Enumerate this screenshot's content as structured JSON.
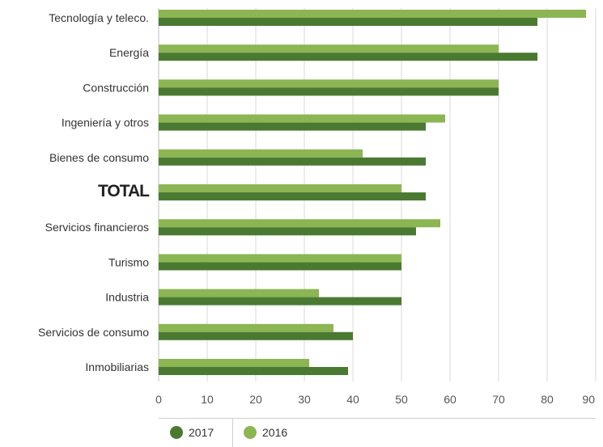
{
  "chart_data": {
    "type": "bar",
    "orientation": "horizontal",
    "categories": [
      "Tecnología y teleco.",
      "Energía",
      "Construcción",
      "Ingeniería y otros",
      "Bienes de consumo",
      "TOTAL",
      "Servicios financieros",
      "Turismo",
      "Industria",
      "Servicios de consumo",
      "Inmobiliarias"
    ],
    "series": [
      {
        "name": "2016",
        "color": "#8cb553",
        "values": [
          88,
          70,
          70,
          59,
          42,
          50,
          58,
          50,
          33,
          36,
          31
        ]
      },
      {
        "name": "2017",
        "color": "#4a7a32",
        "values": [
          78,
          78,
          70,
          55,
          55,
          55,
          53,
          50,
          50,
          40,
          39
        ]
      }
    ],
    "xlim": [
      0,
      90
    ],
    "xticks": [
      "0",
      "10",
      "20",
      "30",
      "40",
      "50",
      "60",
      "70",
      "80",
      "90"
    ],
    "grid": true,
    "legend_position": "bottom-left"
  },
  "legend": {
    "items": [
      {
        "label": "2017",
        "color": "#4a7a32"
      },
      {
        "label": "2016",
        "color": "#8cb553"
      }
    ]
  }
}
